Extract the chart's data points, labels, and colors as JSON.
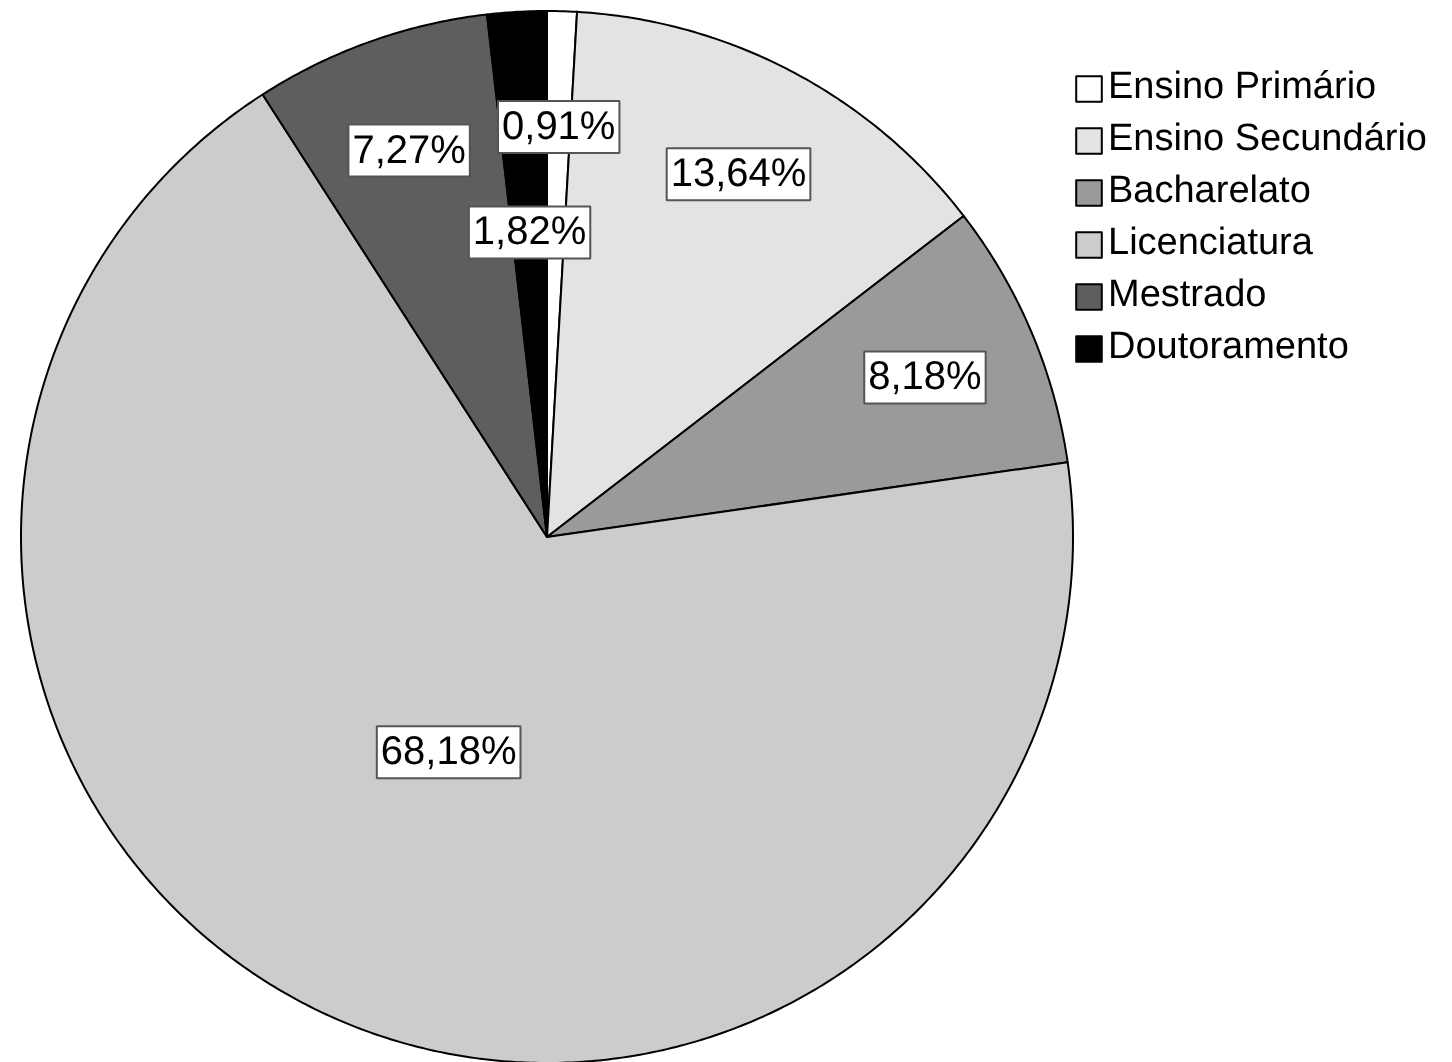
{
  "chart_data": {
    "type": "pie",
    "categories": [
      "Ensino Primário",
      "Ensino Secundário",
      "Bacharelato",
      "Licenciatura",
      "Mestrado",
      "Doutoramento"
    ],
    "values": [
      0.91,
      13.64,
      8.18,
      68.18,
      7.27,
      1.82
    ],
    "colors": [
      "#ffffff",
      "#e3e3e3",
      "#9a9a9a",
      "#cccccc",
      "#5e5e5e",
      "#000000"
    ],
    "value_labels": [
      "0,91%",
      "13,64%",
      "8,18%",
      "68,18%",
      "7,27%",
      "1,82%"
    ],
    "legend": "top right"
  }
}
